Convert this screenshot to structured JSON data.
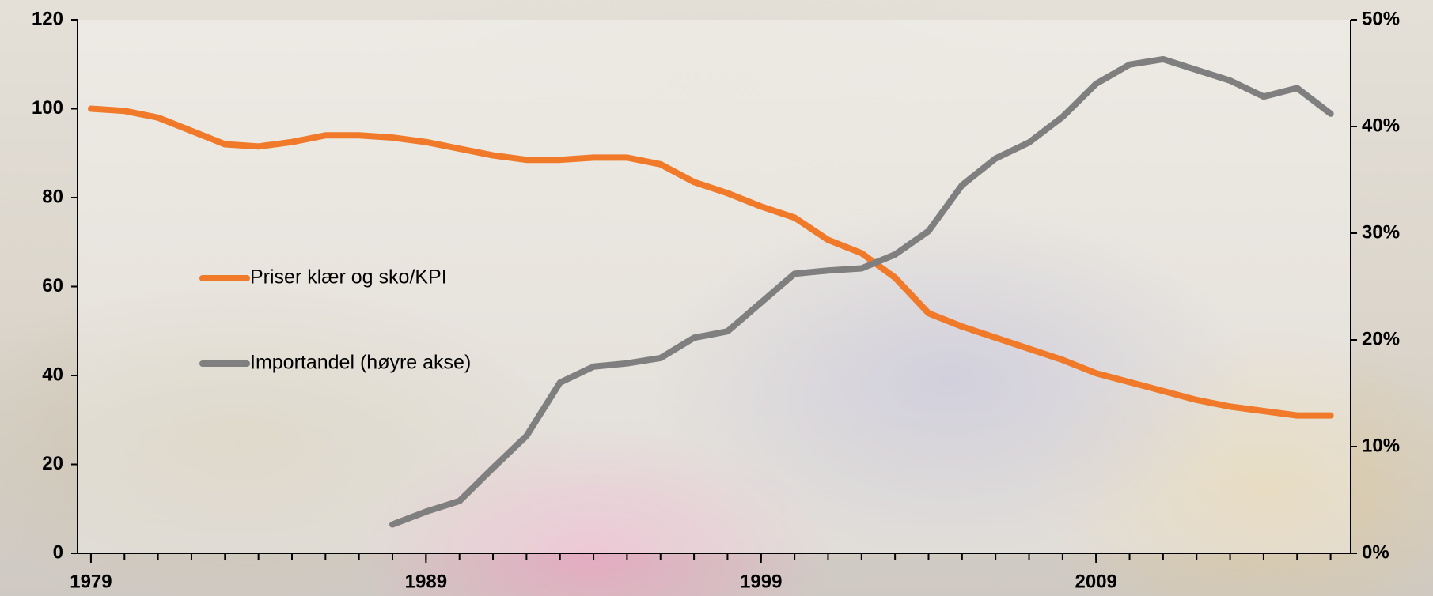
{
  "chart_data": {
    "type": "line",
    "x": [
      1979,
      1980,
      1981,
      1982,
      1983,
      1984,
      1985,
      1986,
      1987,
      1988,
      1989,
      1990,
      1991,
      1992,
      1993,
      1994,
      1995,
      1996,
      1997,
      1998,
      1999,
      2000,
      2001,
      2002,
      2003,
      2004,
      2005,
      2006,
      2007,
      2008,
      2009,
      2010,
      2011,
      2012,
      2013,
      2014,
      2015,
      2016
    ],
    "xlim": [
      1978.6,
      2016.6
    ],
    "xticks": [
      1979,
      1989,
      1999,
      2009
    ],
    "ylim": [
      0,
      120
    ],
    "yticks": [
      0,
      20,
      40,
      60,
      80,
      100,
      120
    ],
    "y2lim": [
      0,
      50
    ],
    "y2ticks": [
      {
        "value": 0,
        "label": "0%"
      },
      {
        "value": 10,
        "label": "10%"
      },
      {
        "value": 20,
        "label": "20%"
      },
      {
        "value": 30,
        "label": "30%"
      },
      {
        "value": 40,
        "label": "40%"
      },
      {
        "value": 50,
        "label": "50%"
      }
    ],
    "series": [
      {
        "name": "Priser klær og sko/KPI",
        "color": "#f07a2a",
        "values": [
          100,
          99.5,
          98,
          95,
          92,
          91.5,
          92.5,
          94,
          94,
          93.5,
          92.5,
          91,
          89.5,
          88.5,
          88.5,
          89,
          89,
          87.5,
          83.5,
          81,
          78,
          75.5,
          70.5,
          67.5,
          62,
          54,
          51,
          48.5,
          46,
          43.5,
          40.5,
          38.5,
          36.5,
          34.5,
          33,
          32,
          31,
          31
        ]
      },
      {
        "name": "Importandel (høyre akse)",
        "color": "#7f7f7f",
        "axis": "y2",
        "values": [
          null,
          null,
          null,
          null,
          null,
          null,
          null,
          null,
          null,
          2.7,
          3.9,
          4.9,
          8,
          11,
          16,
          17.5,
          17.8,
          18.3,
          20.2,
          20.8,
          23.5,
          26.2,
          26.5,
          26.7,
          28,
          30.2,
          34.5,
          37,
          38.5,
          40.9,
          44,
          45.8,
          46.3,
          45.3,
          44.3,
          42.8,
          43.6,
          41.2
        ]
      }
    ]
  }
}
